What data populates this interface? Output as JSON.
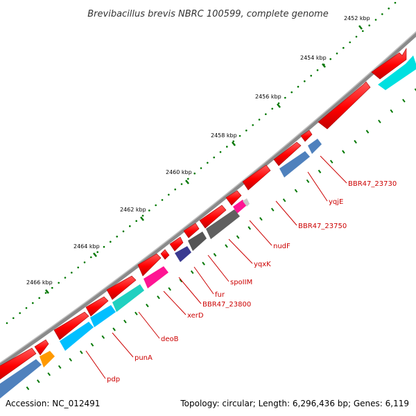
{
  "title": "Brevibacillus brevis NBRC 100599, complete genome",
  "accession": "Accession: NC_012491",
  "summary": "Topology: circular; Length: 6,296,436 bp; Genes: 6,119",
  "tick_labels": [
    "2452 kbp",
    "2454 kbp",
    "2456 kbp",
    "2458 kbp",
    "2460 kbp",
    "2462 kbp",
    "2464 kbp",
    "2466 kbp"
  ],
  "gene_labels": [
    "BBR47_23730",
    "yqjE",
    "BBR47_23750",
    "nudF",
    "yqxK",
    "spoIIM",
    "fur",
    "BBR47_23800",
    "xerD",
    "deoB",
    "punA",
    "pdp"
  ],
  "colors": {
    "cds": "#ff0000",
    "backbone": "#888888",
    "tick": "#007700",
    "label": "#cc0000",
    "cog_steelblue": "#4f81bd",
    "cog_cyan": "#00c8ff",
    "cog_teal": "#20d0c0",
    "cog_magenta": "#ff1493",
    "cog_grey": "#606060",
    "cog_navy": "#3a3a90",
    "cog_orange": "#ff9900"
  }
}
